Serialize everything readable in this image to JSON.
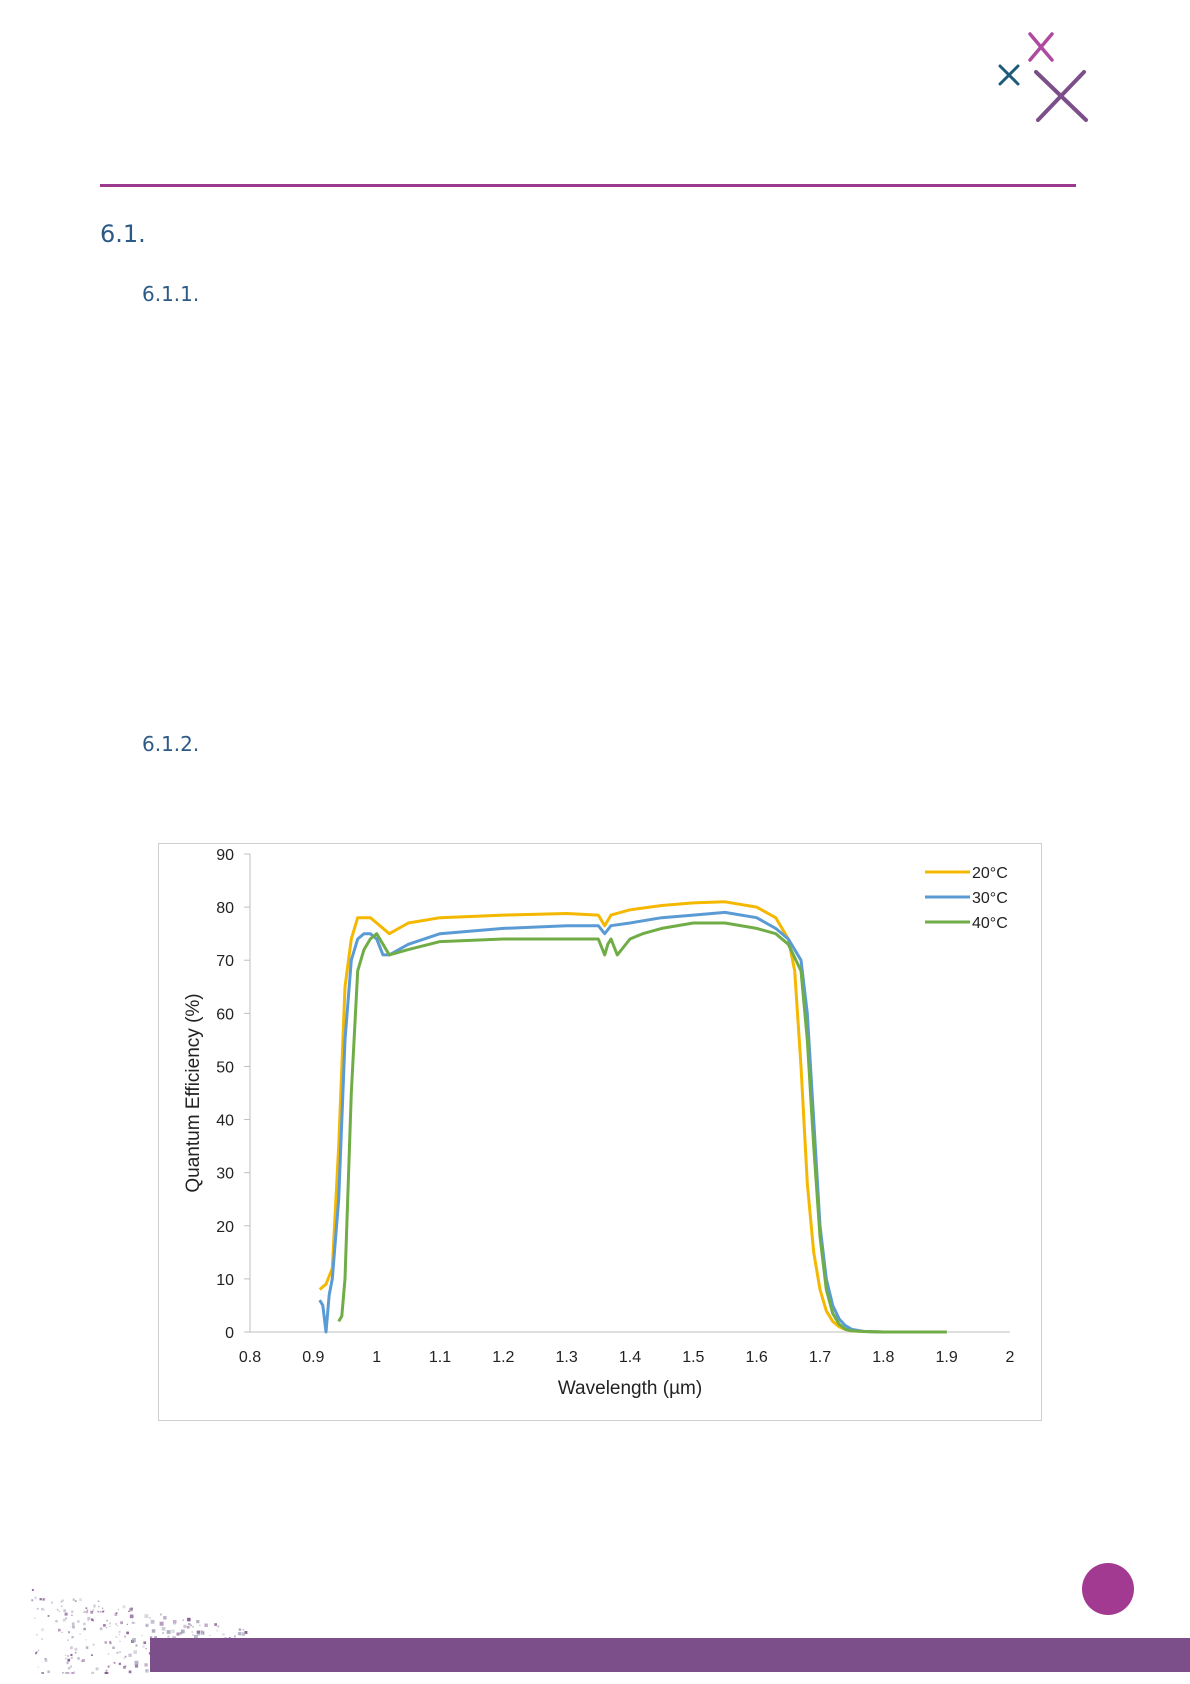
{
  "headings": {
    "h1": "6.1.",
    "h2": "6.1.1.",
    "h3": "6.1.2."
  },
  "colors": {
    "accent": "#9b3a8e",
    "heading": "#2d5a85",
    "band": "#7d4f8a",
    "badge": "#a33a91"
  },
  "chart_data": {
    "type": "line",
    "title": "",
    "xlabel": "Wavelength (µm)",
    "ylabel": "Quantum Efficiency (%)",
    "xlim": [
      0.8,
      2
    ],
    "ylim": [
      0,
      90
    ],
    "x_ticks": [
      "0.8",
      "0.9",
      "1",
      "1.1",
      "1.2",
      "1.3",
      "1.4",
      "1.5",
      "1.6",
      "1.7",
      "1.8",
      "1.9",
      "2"
    ],
    "y_ticks": [
      "0",
      "10",
      "20",
      "30",
      "40",
      "50",
      "60",
      "70",
      "80",
      "90"
    ],
    "grid": false,
    "legend_position": "top-right",
    "series": [
      {
        "name": "20°C",
        "color": "#f5b800",
        "x": [
          0.91,
          0.92,
          0.93,
          0.94,
          0.95,
          0.96,
          0.97,
          0.98,
          0.99,
          1.0,
          1.02,
          1.05,
          1.1,
          1.2,
          1.3,
          1.35,
          1.36,
          1.37,
          1.4,
          1.45,
          1.5,
          1.55,
          1.6,
          1.63,
          1.65,
          1.66,
          1.67,
          1.68,
          1.69,
          1.7,
          1.71,
          1.72,
          1.73,
          1.74,
          1.75,
          1.77,
          1.8,
          1.85,
          1.9
        ],
        "y": [
          8,
          9,
          12,
          35,
          65,
          74,
          78,
          78,
          78,
          77,
          75,
          77,
          78,
          78.5,
          78.8,
          78.5,
          76.5,
          78.5,
          79.5,
          80.3,
          80.8,
          81,
          80,
          78,
          74,
          68,
          50,
          28,
          15,
          8,
          4,
          2,
          1,
          0.5,
          0.2,
          0.1,
          0,
          0,
          0
        ]
      },
      {
        "name": "30°C",
        "color": "#5b9bd5",
        "x": [
          0.91,
          0.915,
          0.92,
          0.925,
          0.93,
          0.94,
          0.95,
          0.96,
          0.97,
          0.98,
          0.99,
          1.0,
          1.01,
          1.02,
          1.05,
          1.1,
          1.2,
          1.3,
          1.35,
          1.36,
          1.37,
          1.4,
          1.45,
          1.5,
          1.55,
          1.6,
          1.63,
          1.65,
          1.67,
          1.68,
          1.69,
          1.7,
          1.71,
          1.72,
          1.73,
          1.74,
          1.75,
          1.77,
          1.8,
          1.85,
          1.9
        ],
        "y": [
          6,
          5,
          0,
          7,
          10,
          25,
          55,
          70,
          74,
          75,
          75,
          74,
          71,
          71,
          73,
          75,
          76,
          76.5,
          76.5,
          75,
          76.5,
          77,
          78,
          78.5,
          79,
          78,
          76,
          74,
          70,
          60,
          40,
          20,
          10,
          5,
          2.5,
          1.2,
          0.5,
          0.1,
          0,
          0,
          0
        ]
      },
      {
        "name": "40°C",
        "color": "#70ad47",
        "x": [
          0.94,
          0.945,
          0.95,
          0.96,
          0.97,
          0.98,
          0.99,
          1.0,
          1.01,
          1.02,
          1.05,
          1.1,
          1.2,
          1.3,
          1.35,
          1.36,
          1.365,
          1.37,
          1.38,
          1.4,
          1.42,
          1.45,
          1.5,
          1.55,
          1.6,
          1.63,
          1.65,
          1.67,
          1.68,
          1.69,
          1.7,
          1.71,
          1.72,
          1.73,
          1.74,
          1.75,
          1.77,
          1.8,
          1.85,
          1.9
        ],
        "y": [
          2,
          3,
          10,
          45,
          68,
          72,
          74,
          75,
          73,
          71,
          72,
          73.5,
          74,
          74,
          74,
          71,
          73,
          74,
          71,
          74,
          75,
          76,
          77,
          77,
          76,
          75,
          73,
          68,
          55,
          35,
          18,
          8,
          3.5,
          1.5,
          0.5,
          0.2,
          0.1,
          0,
          0,
          0
        ]
      }
    ]
  }
}
